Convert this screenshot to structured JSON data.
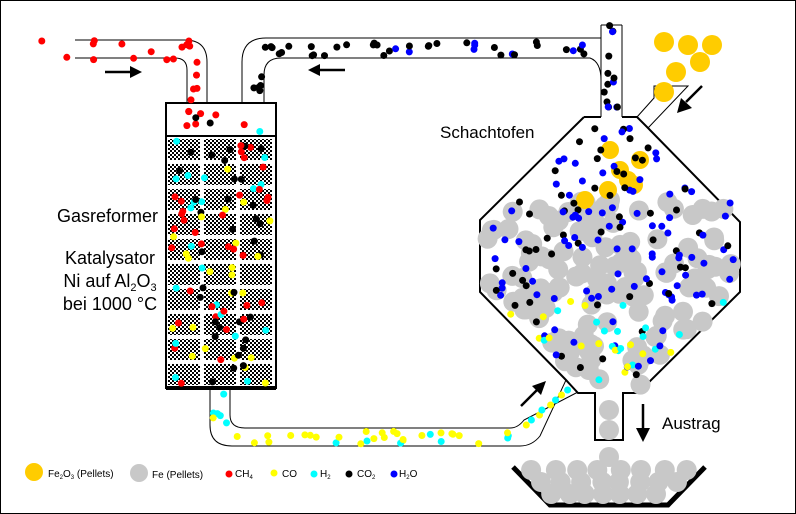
{
  "labels": {
    "reformer": "Gasreformer",
    "catalyst_line1": "Katalysator",
    "catalyst_line2_a": "Ni auf Al",
    "catalyst_line2_sub1": "2",
    "catalyst_line2_b": "O",
    "catalyst_line2_sub2": "3",
    "catalyst_line3": "bei 1000 °C",
    "shaft_furnace": "Schachtofen",
    "discharge": "Austrag"
  },
  "legend": [
    {
      "label": "Fe2O3 (Pellets)",
      "main": "Fe",
      "sub1": "2",
      "mid": "O",
      "sub2": "3",
      "tail": " (Pellets)",
      "color": "#FFCC00"
    },
    {
      "label": "Fe (Pellets)",
      "main": "Fe (Pellets)",
      "color": "#C8C8C8"
    },
    {
      "label": "CH4",
      "main": "CH",
      "sub1": "4",
      "color": "#FF0000"
    },
    {
      "label": "CO",
      "main": "CO",
      "color": "#FFFF00"
    },
    {
      "label": "H2",
      "main": "H",
      "sub1": "2",
      "color": "#00FFFF"
    },
    {
      "label": "CO2",
      "main": "CO",
      "sub1": "2",
      "color": "#000000"
    },
    {
      "label": "H2O",
      "main": "H",
      "sub1": "2",
      "mid": "O",
      "color": "#0000FF"
    }
  ],
  "colors": {
    "fe2o3": "#FFCC00",
    "fe": "#C8C8C8",
    "ch4": "#FF0000",
    "co": "#FFFF00",
    "h2": "#00FFFF",
    "co2": "#000000",
    "h2o": "#0000FF",
    "pipe": "#000000"
  }
}
